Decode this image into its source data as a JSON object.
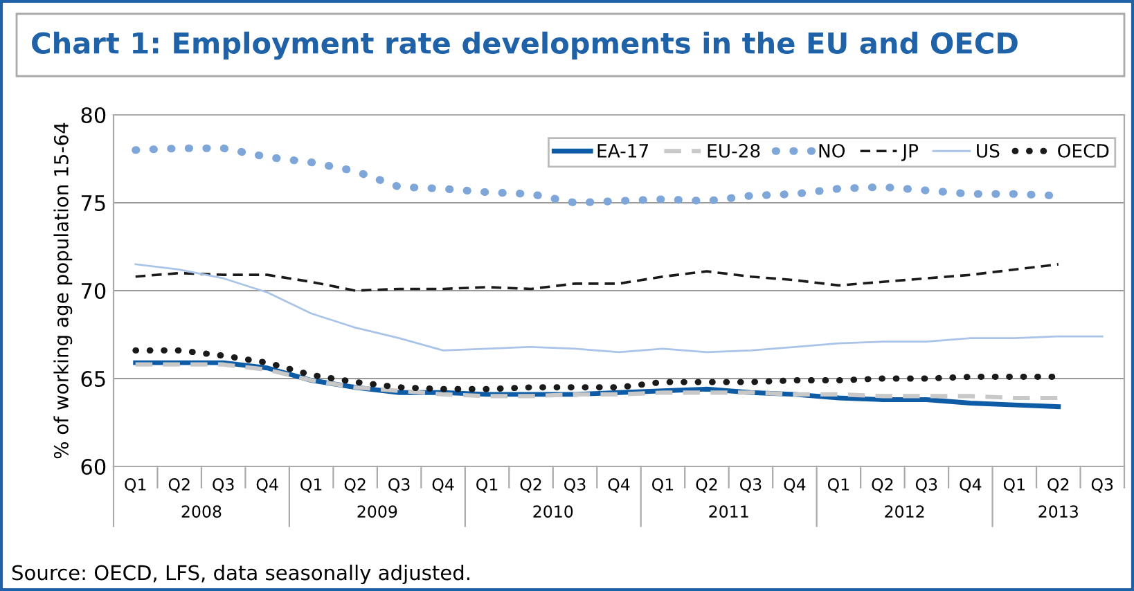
{
  "chart_data": {
    "type": "line",
    "title": "Chart 1: Employment rate developments in the EU and OECD",
    "ylabel": "% of working age population 15-64",
    "categories": [
      "Q1",
      "Q2",
      "Q3",
      "Q4",
      "Q1",
      "Q2",
      "Q3",
      "Q4",
      "Q1",
      "Q2",
      "Q3",
      "Q4",
      "Q1",
      "Q2",
      "Q3",
      "Q4",
      "Q1",
      "Q2",
      "Q3",
      "Q4",
      "Q1",
      "Q2",
      "Q3"
    ],
    "ylim": [
      60,
      80
    ],
    "yticks": [
      60,
      65,
      70,
      75,
      80
    ],
    "grid": "y",
    "legend": "top right",
    "series": [
      {
        "name": "EA-17",
        "color": "#0e5ca6",
        "line_style": "solid",
        "values": [
          65.9,
          65.9,
          65.9,
          65.6,
          64.9,
          64.5,
          64.2,
          64.2,
          64.1,
          64.1,
          64.1,
          64.2,
          64.3,
          64.4,
          64.2,
          64.1,
          63.9,
          63.8,
          63.8,
          63.6,
          63.5,
          63.4,
          null
        ]
      },
      {
        "name": "EU-28",
        "color": "#c8c8c8",
        "line_style": "dashed",
        "values": [
          65.8,
          65.8,
          65.8,
          65.5,
          64.9,
          64.5,
          64.3,
          64.1,
          64.0,
          64.0,
          64.1,
          64.1,
          64.2,
          64.2,
          64.2,
          64.1,
          64.1,
          64.0,
          64.0,
          64.0,
          63.9,
          63.9,
          null
        ]
      },
      {
        "name": "NO",
        "color": "#7ea6d8",
        "line_style": "dotted",
        "values": [
          78.0,
          78.1,
          78.1,
          77.6,
          77.3,
          76.8,
          75.9,
          75.8,
          75.6,
          75.5,
          75.0,
          75.1,
          75.2,
          75.1,
          75.4,
          75.5,
          75.8,
          75.9,
          75.7,
          75.5,
          75.5,
          75.4,
          null
        ]
      },
      {
        "name": "JP",
        "color": "#1a1a1a",
        "line_style": "dashed",
        "values": [
          70.8,
          71.0,
          70.9,
          70.9,
          70.5,
          70.0,
          70.1,
          70.1,
          70.2,
          70.1,
          70.4,
          70.4,
          70.8,
          71.1,
          70.8,
          70.6,
          70.3,
          70.5,
          70.7,
          70.9,
          71.2,
          71.5,
          null
        ]
      },
      {
        "name": "US",
        "color": "#a9c4e8",
        "line_style": "solid",
        "values": [
          71.5,
          71.2,
          70.7,
          69.9,
          68.7,
          67.9,
          67.3,
          66.6,
          66.7,
          66.8,
          66.7,
          66.5,
          66.7,
          66.5,
          66.6,
          66.8,
          67.0,
          67.1,
          67.1,
          67.3,
          67.3,
          67.4,
          67.4
        ]
      },
      {
        "name": "OECD",
        "color": "#1a1a1a",
        "line_style": "dotted",
        "values": [
          66.6,
          66.6,
          66.3,
          65.9,
          65.2,
          64.8,
          64.5,
          64.4,
          64.4,
          64.5,
          64.5,
          64.5,
          64.8,
          64.8,
          64.8,
          64.9,
          64.9,
          65.0,
          65.0,
          65.1,
          65.1,
          65.1,
          null
        ]
      }
    ],
    "annotations": [
      "2008",
      "2009",
      "2010",
      "2011",
      "2012",
      "2013",
      "Source: OECD, LFS, data seasonally adjusted."
    ]
  }
}
